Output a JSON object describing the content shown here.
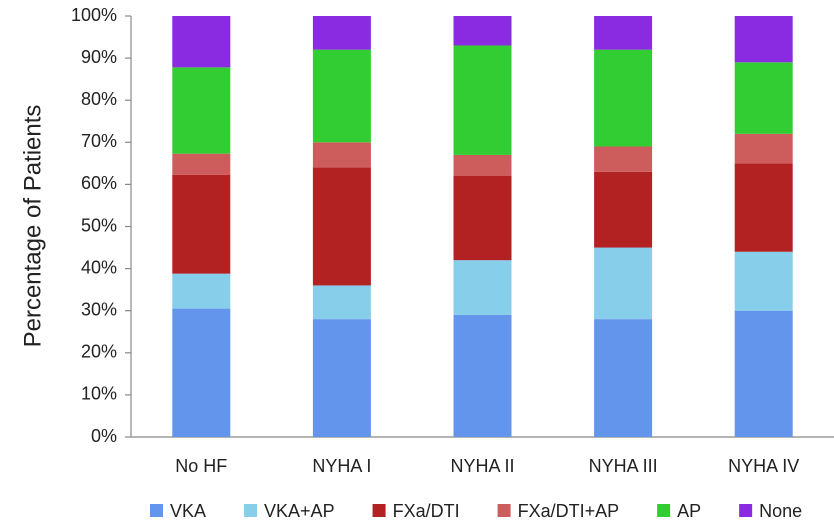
{
  "chart_data": {
    "type": "stacked_bar",
    "y_label": "Percentage of Patients",
    "categories": [
      "No HF",
      "NYHA I",
      "NYHA II",
      "NYHA III",
      "NYHA IV"
    ],
    "series": [
      {
        "name": "VKA",
        "color": "#6495ed",
        "values": [
          30.5,
          28,
          29,
          28,
          30
        ]
      },
      {
        "name": "VKA+AP",
        "color": "#87ceeb",
        "values": [
          8.3,
          8,
          13,
          17,
          14
        ]
      },
      {
        "name": "FXa/DTI",
        "color": "#b22222",
        "values": [
          23.5,
          28,
          20,
          18,
          21
        ]
      },
      {
        "name": "FXa/DTI+AP",
        "color": "#cd5c5c",
        "values": [
          5,
          6,
          5,
          6,
          7
        ]
      },
      {
        "name": "AP",
        "color": "#32cd32",
        "values": [
          20.5,
          22,
          26,
          23,
          17
        ]
      },
      {
        "name": "None",
        "color": "#8a2be2",
        "values": [
          12.2,
          8,
          7,
          8,
          11
        ]
      }
    ],
    "ylim": [
      0,
      100
    ],
    "yticks": [
      {
        "value": 0,
        "label": "0%"
      },
      {
        "value": 10,
        "label": "10%"
      },
      {
        "value": 20,
        "label": "20%"
      },
      {
        "value": 30,
        "label": "30%"
      },
      {
        "value": 40,
        "label": "40%"
      },
      {
        "value": 50,
        "label": "50%"
      },
      {
        "value": 60,
        "label": "60%"
      },
      {
        "value": 70,
        "label": "70%"
      },
      {
        "value": 80,
        "label": "80%"
      },
      {
        "value": 90,
        "label": "90%"
      },
      {
        "value": 100,
        "label": "100%"
      }
    ],
    "legend": "bottom"
  }
}
